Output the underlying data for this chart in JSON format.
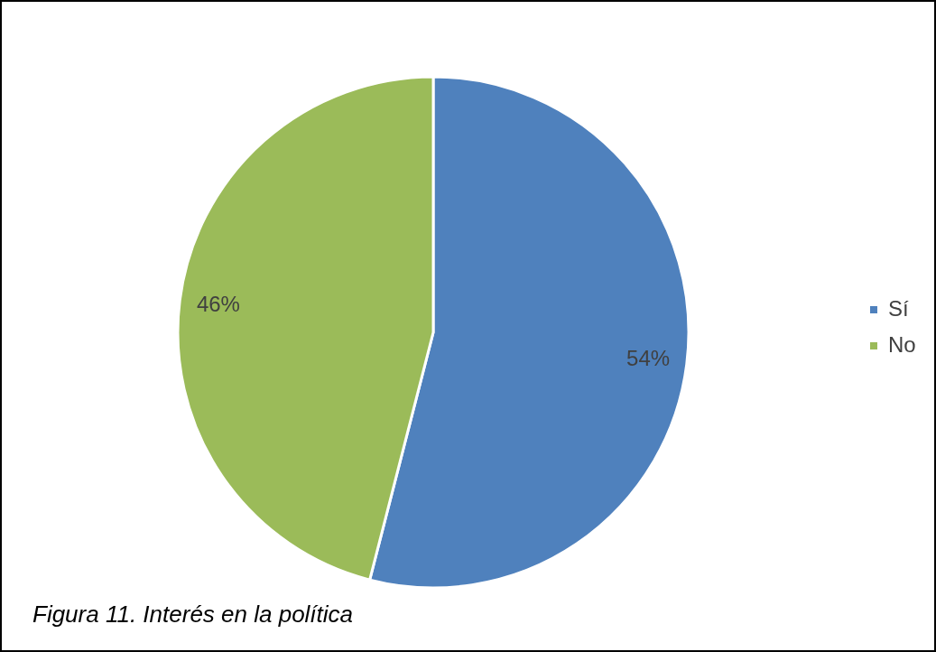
{
  "chart_data": {
    "type": "pie",
    "categories": [
      "Sí",
      "No"
    ],
    "values": [
      54,
      46
    ],
    "colors": [
      "#4f81bd",
      "#9bbb59"
    ],
    "value_labels": [
      "54%",
      "46%"
    ],
    "legend": "right",
    "annotations": [
      "Figura 11. Interés en la política"
    ]
  }
}
